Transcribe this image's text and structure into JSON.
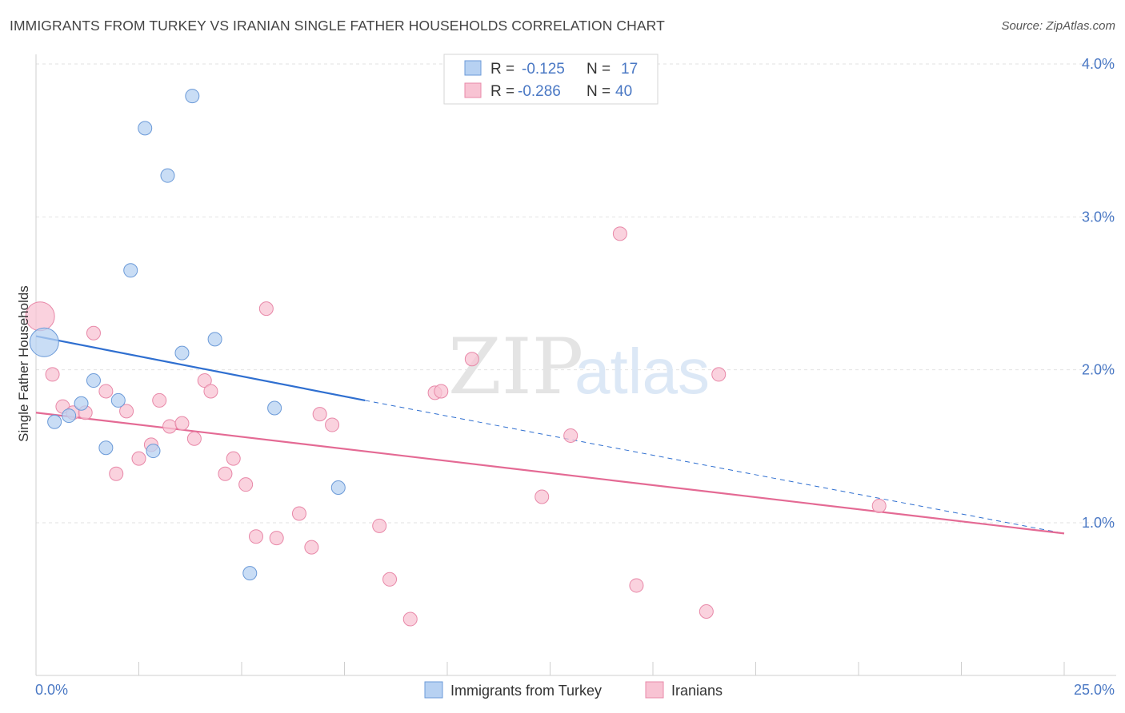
{
  "header": {
    "title": "IMMIGRANTS FROM TURKEY VS IRANIAN SINGLE FATHER HOUSEHOLDS CORRELATION CHART",
    "source": "Source: ZipAtlas.com"
  },
  "chart_data": {
    "type": "scatter",
    "title": "IMMIGRANTS FROM TURKEY VS IRANIAN SINGLE FATHER HOUSEHOLDS CORRELATION CHART",
    "xlabel": "",
    "ylabel": "Single Father Households",
    "xlim": [
      0,
      25
    ],
    "ylim": [
      0,
      4.2
    ],
    "x_tick_labels": [
      "0.0%",
      "25.0%"
    ],
    "y_ticks": [
      1.0,
      2.0,
      3.0,
      4.0
    ],
    "y_tick_labels": [
      "1.0%",
      "2.0%",
      "3.0%",
      "4.0%"
    ],
    "grid": true,
    "watermark": "ZIPatlas",
    "legend_position": "top-center",
    "colors": {
      "turkey_fill": "#b7d1f2",
      "turkey_stroke": "#6b9ad8",
      "turkey_line": "#2f6fd0",
      "iran_fill": "#f8c3d3",
      "iran_stroke": "#e888a8",
      "iran_line": "#e46a94"
    },
    "stats": [
      {
        "series": "Immigrants from Turkey",
        "r_label": "R =",
        "r": "-0.125",
        "n_label": "N =",
        "n": "17"
      },
      {
        "series": "Iranians",
        "r_label": "R =",
        "r": "-0.286",
        "n_label": "N =",
        "n": "40"
      }
    ],
    "series": [
      {
        "name": "Immigrants from Turkey",
        "points": [
          {
            "x": 0.2,
            "y": 2.18,
            "big": true
          },
          {
            "x": 0.45,
            "y": 1.66
          },
          {
            "x": 0.8,
            "y": 1.7
          },
          {
            "x": 1.1,
            "y": 1.78
          },
          {
            "x": 1.4,
            "y": 1.93
          },
          {
            "x": 1.7,
            "y": 1.49
          },
          {
            "x": 2.0,
            "y": 1.8
          },
          {
            "x": 2.3,
            "y": 2.65
          },
          {
            "x": 2.65,
            "y": 3.58
          },
          {
            "x": 2.85,
            "y": 1.47
          },
          {
            "x": 3.2,
            "y": 3.27
          },
          {
            "x": 3.55,
            "y": 2.11
          },
          {
            "x": 3.8,
            "y": 3.79
          },
          {
            "x": 4.35,
            "y": 2.2
          },
          {
            "x": 5.2,
            "y": 0.67
          },
          {
            "x": 5.8,
            "y": 1.75
          },
          {
            "x": 7.35,
            "y": 1.23
          }
        ],
        "trend": {
          "x0": 0,
          "y0": 2.22,
          "x1": 8.0,
          "y1": 1.8,
          "x_dash_end": 25,
          "y_dash_end": 0.93
        }
      },
      {
        "name": "Iranians",
        "points": [
          {
            "x": 0.1,
            "y": 2.35,
            "big": true
          },
          {
            "x": 0.4,
            "y": 1.97
          },
          {
            "x": 0.65,
            "y": 1.76
          },
          {
            "x": 0.9,
            "y": 1.72
          },
          {
            "x": 1.2,
            "y": 1.72
          },
          {
            "x": 1.4,
            "y": 2.24
          },
          {
            "x": 1.7,
            "y": 1.86
          },
          {
            "x": 1.95,
            "y": 1.32
          },
          {
            "x": 2.2,
            "y": 1.73
          },
          {
            "x": 2.5,
            "y": 1.42
          },
          {
            "x": 2.8,
            "y": 1.51
          },
          {
            "x": 3.0,
            "y": 1.8
          },
          {
            "x": 3.25,
            "y": 1.63
          },
          {
            "x": 3.55,
            "y": 1.65
          },
          {
            "x": 3.85,
            "y": 1.55
          },
          {
            "x": 4.1,
            "y": 1.93
          },
          {
            "x": 4.25,
            "y": 1.86
          },
          {
            "x": 4.6,
            "y": 1.32
          },
          {
            "x": 4.8,
            "y": 1.42
          },
          {
            "x": 5.1,
            "y": 1.25
          },
          {
            "x": 5.35,
            "y": 0.91
          },
          {
            "x": 5.6,
            "y": 2.4
          },
          {
            "x": 5.85,
            "y": 0.9
          },
          {
            "x": 6.4,
            "y": 1.06
          },
          {
            "x": 6.7,
            "y": 0.84
          },
          {
            "x": 6.9,
            "y": 1.71
          },
          {
            "x": 7.2,
            "y": 1.64
          },
          {
            "x": 8.35,
            "y": 0.98
          },
          {
            "x": 8.6,
            "y": 0.63
          },
          {
            "x": 9.1,
            "y": 0.37
          },
          {
            "x": 9.7,
            "y": 1.85
          },
          {
            "x": 9.85,
            "y": 1.86
          },
          {
            "x": 10.6,
            "y": 2.07
          },
          {
            "x": 12.3,
            "y": 1.17
          },
          {
            "x": 13.0,
            "y": 1.57
          },
          {
            "x": 14.2,
            "y": 2.89
          },
          {
            "x": 14.6,
            "y": 0.59
          },
          {
            "x": 16.3,
            "y": 0.42
          },
          {
            "x": 16.6,
            "y": 1.97
          },
          {
            "x": 20.5,
            "y": 1.11
          }
        ],
        "trend": {
          "x0": 0,
          "y0": 1.72,
          "x1": 25,
          "y1": 0.93
        }
      }
    ]
  },
  "legend": {
    "items": [
      {
        "label": "Immigrants from Turkey"
      },
      {
        "label": "Iranians"
      }
    ]
  }
}
